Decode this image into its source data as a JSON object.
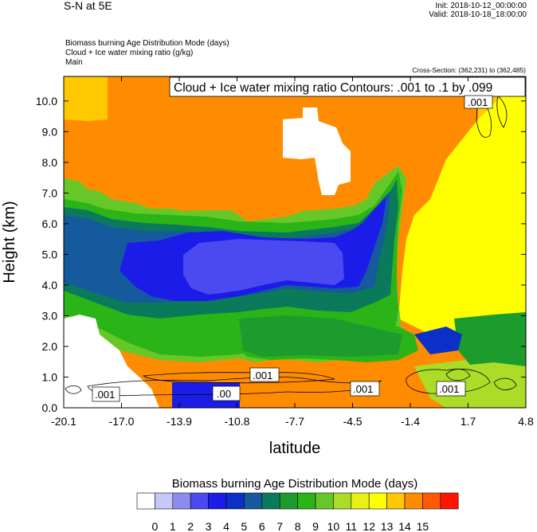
{
  "header": {
    "title": "S-N at 5E",
    "init": "Init: 2018-10-12_00:00:00",
    "valid": "Valid: 2018-10-18_18:00:00",
    "field1": "Biomass burning Age Distribution Mode   (days)",
    "field2": "Cloud + Ice water mixing ratio   (g/kg)",
    "field3": "Main",
    "cross_section": "Cross-Section: (362,231) to (362,485)"
  },
  "colors": {
    "palette": [
      "#ffffff",
      "#c8c8f8",
      "#8c8cf0",
      "#4a4af0",
      "#1c1ce8",
      "#0a30c8",
      "#145a9c",
      "#0a7a5a",
      "#1c9c2c",
      "#2ab418",
      "#66c828",
      "#aadc28",
      "#e8f018",
      "#ffff00",
      "#ffc800",
      "#ff8c00",
      "#ff5a00",
      "#ff1400"
    ]
  },
  "chart_data": {
    "type": "heatmap",
    "title": "Cloud + Ice water mixing ratio Contours: .001 to .1 by .099",
    "xlabel": "latitude",
    "ylabel": "Height (km)",
    "xlim": [
      -20.1,
      4.8
    ],
    "ylim": [
      0.0,
      10.8
    ],
    "x_ticks": [
      "-20.1",
      "-17.0",
      "-13.9",
      "-10.8",
      "-7.7",
      "-4.5",
      "-1.4",
      "1.7",
      "4.8"
    ],
    "y_ticks": [
      "0.0",
      "1.0",
      "2.0",
      "3.0",
      "4.0",
      "5.0",
      "6.0",
      "7.0",
      "8.0",
      "9.0",
      "10.0"
    ],
    "contour_labels": [
      ".001",
      ".001",
      ".00",
      ".001",
      ".001",
      ".001"
    ],
    "colorbar": {
      "title": "Biomass burning Age Distribution Mode  (days)",
      "labels": [
        "0",
        "1",
        "2",
        "3",
        "4",
        "5",
        "6",
        "7",
        "8",
        "9",
        "10",
        "11",
        "12",
        "13",
        "14",
        "15"
      ]
    }
  }
}
